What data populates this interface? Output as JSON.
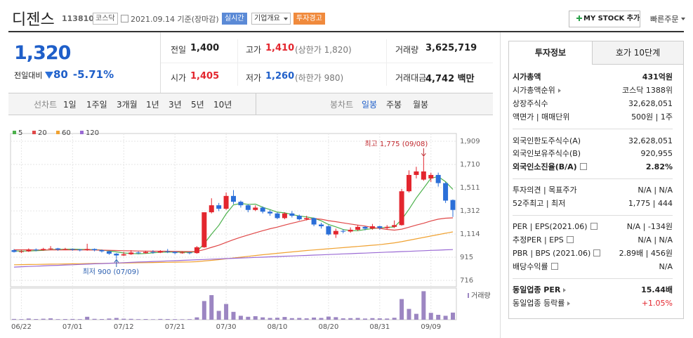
{
  "header": {
    "name": "디젠스",
    "code": "113810",
    "market": "코스닥",
    "date": "2021.09.14 기준(장마감)",
    "realtime": "실시간",
    "overview": "기업개요",
    "warning": "투자경고",
    "mystock": "MY STOCK 추가",
    "quick": "빠른주문"
  },
  "price": {
    "current": "1,320",
    "change_label": "전일대비",
    "change": "80",
    "change_pct": "-5.71%"
  },
  "quote": {
    "rows": [
      [
        {
          "label": "전일",
          "value": "1,400"
        },
        {
          "label": "고가",
          "value": "1,410",
          "note": "(상한가 1,820)"
        },
        {
          "label": "거래량",
          "value": "3,625,719"
        }
      ],
      [
        {
          "label": "시가",
          "value": "1,405"
        },
        {
          "label": "저가",
          "value": "1,260",
          "note": "(하한가 980)"
        },
        {
          "label": "거래대금",
          "value": "4,742 백만"
        }
      ]
    ]
  },
  "tabs": {
    "line_title": "선차트",
    "line": [
      "1일",
      "1주일",
      "3개월",
      "1년",
      "3년",
      "5년",
      "10년"
    ],
    "candle_title": "봉차트",
    "candle": [
      "일봉",
      "주봉",
      "월봉"
    ]
  },
  "info": {
    "tabs": [
      "투자정보",
      "호가 10단계"
    ],
    "groups": [
      [
        {
          "label": "시가총액",
          "value": "431억원"
        },
        {
          "label": "시가총액순위",
          "value": "코스닥 1388위"
        },
        {
          "label": "상장주식수",
          "value": "32,628,051"
        },
        {
          "label": "액면가 | 매매단위",
          "value": "500원 | 1주"
        }
      ],
      [
        {
          "label": "외국인한도주식수(A)",
          "value": "32,628,051"
        },
        {
          "label": "외국인보유주식수(B)",
          "value": "920,955"
        },
        {
          "label": "외국인소진율(B/A)",
          "value": "2.82%"
        }
      ],
      [
        {
          "label": "투자의견 | 목표주가",
          "value": "N/A | N/A"
        },
        {
          "label": "52주최고 | 최저",
          "value": "1,775 | 444"
        }
      ],
      [
        {
          "label": "PER | EPS(2021.06)",
          "value": "N/A | -134원"
        },
        {
          "label": "추정PER | EPS",
          "value": "N/A | N/A"
        },
        {
          "label": "PBR | BPS (2021.06)",
          "value": "2.89배 | 456원"
        },
        {
          "label": "배당수익률",
          "value": "N/A"
        }
      ],
      [
        {
          "label": "동일업종 PER",
          "value": "15.44배"
        },
        {
          "label": "동일업종 등락률",
          "value": "+1.05%"
        }
      ]
    ]
  },
  "chart_data": {
    "type": "candlestick",
    "categories": [
      null,
      "06/22",
      null,
      null,
      null,
      null,
      null,
      null,
      "07/01",
      null,
      null,
      null,
      null,
      null,
      null,
      "07/12",
      null,
      null,
      null,
      null,
      null,
      null,
      "07/21",
      null,
      null,
      null,
      null,
      null,
      null,
      "07/30",
      null,
      null,
      null,
      null,
      null,
      null,
      "08/10",
      null,
      null,
      null,
      null,
      null,
      null,
      "08/20",
      null,
      null,
      null,
      null,
      null,
      null,
      "08/31",
      null,
      null,
      null,
      null,
      null,
      null,
      "09/09",
      null,
      null,
      null
    ],
    "open": [
      975,
      960,
      965,
      980,
      975,
      985,
      990,
      980,
      985,
      980,
      975,
      985,
      975,
      965,
      945,
      930,
      940,
      955,
      950,
      960,
      955,
      965,
      960,
      950,
      955,
      950,
      1000,
      1300,
      1360,
      1330,
      1440,
      1390,
      1360,
      1320,
      1340,
      1305,
      1290,
      1250,
      1290,
      1270,
      1240,
      1250,
      1195,
      1180,
      1110,
      1140,
      1135,
      1150,
      1175,
      1160,
      1180,
      1165,
      1175,
      1190,
      1480,
      1620,
      1580,
      1590,
      1620,
      1550,
      1405
    ],
    "high": [
      985,
      975,
      990,
      990,
      995,
      1010,
      995,
      995,
      990,
      985,
      1030,
      990,
      980,
      970,
      950,
      960,
      975,
      965,
      970,
      975,
      975,
      985,
      965,
      965,
      960,
      1010,
      1300,
      1420,
      1380,
      1470,
      1490,
      1400,
      1370,
      1360,
      1350,
      1320,
      1300,
      1300,
      1310,
      1280,
      1270,
      1255,
      1210,
      1190,
      1160,
      1155,
      1170,
      1190,
      1180,
      1200,
      1185,
      1190,
      1230,
      1500,
      1660,
      1690,
      1775,
      1640,
      1640,
      1560,
      1410
    ],
    "low": [
      955,
      950,
      960,
      965,
      970,
      975,
      970,
      975,
      970,
      965,
      970,
      965,
      955,
      935,
      900,
      925,
      935,
      940,
      945,
      945,
      950,
      950,
      940,
      945,
      940,
      945,
      995,
      1290,
      1310,
      1320,
      1370,
      1340,
      1300,
      1310,
      1290,
      1270,
      1240,
      1240,
      1255,
      1230,
      1230,
      1180,
      1160,
      1100,
      1080,
      1120,
      1125,
      1140,
      1145,
      1150,
      1150,
      1155,
      1165,
      1185,
      1470,
      1590,
      1570,
      1560,
      1520,
      1380,
      1260
    ],
    "close": [
      960,
      965,
      980,
      975,
      985,
      990,
      980,
      985,
      980,
      975,
      985,
      975,
      965,
      945,
      930,
      940,
      955,
      950,
      960,
      955,
      965,
      960,
      950,
      955,
      950,
      1000,
      1300,
      1360,
      1330,
      1440,
      1390,
      1360,
      1320,
      1340,
      1305,
      1290,
      1250,
      1290,
      1270,
      1240,
      1250,
      1195,
      1180,
      1110,
      1140,
      1135,
      1150,
      1175,
      1160,
      1180,
      1165,
      1175,
      1190,
      1480,
      1620,
      1650,
      1650,
      1620,
      1550,
      1400,
      1320
    ],
    "up_color": "#e3262e",
    "down_color": "#2b6fd8",
    "series": [
      {
        "name": "5",
        "color": "#4cb14c",
        "values": [
          968,
          967,
          968,
          970,
          973,
          979,
          982,
          983,
          984,
          982,
          981,
          980,
          976,
          969,
          960,
          951,
          947,
          944,
          947,
          952,
          957,
          958,
          958,
          957,
          956,
          963,
          1031,
          1113,
          1188,
          1286,
          1364,
          1376,
          1368,
          1370,
          1343,
          1323,
          1301,
          1295,
          1281,
          1268,
          1260,
          1249,
          1227,
          1195,
          1175,
          1152,
          1143,
          1142,
          1152,
          1160,
          1166,
          1171,
          1174,
          1238,
          1326,
          1423,
          1506,
          1592,
          1606,
          1562,
          1496
        ]
      },
      {
        "name": "20",
        "color": "#e04848",
        "values": [
          978,
          978,
          978,
          977,
          977,
          977,
          977,
          977,
          977,
          977,
          977,
          976,
          975,
          974,
          972,
          970,
          969,
          968,
          967,
          966,
          966,
          966,
          965,
          964,
          963,
          964,
          980,
          999,
          1018,
          1042,
          1065,
          1086,
          1105,
          1124,
          1142,
          1159,
          1173,
          1190,
          1206,
          1221,
          1236,
          1246,
          1240,
          1228,
          1219,
          1209,
          1199,
          1190,
          1182,
          1169,
          1162,
          1153,
          1147,
          1155,
          1172,
          1190,
          1206,
          1226,
          1241,
          1249,
          1252
        ]
      },
      {
        "name": "60",
        "color": "#f0a232",
        "values": [
          850,
          851,
          852,
          853,
          854,
          855,
          856,
          857,
          858,
          859,
          860,
          861,
          862,
          863,
          864,
          865,
          866,
          867,
          868,
          869,
          870,
          871,
          872,
          873,
          874,
          876,
          882,
          888,
          894,
          901,
          908,
          915,
          922,
          929,
          936,
          942,
          948,
          954,
          960,
          966,
          972,
          977,
          982,
          987,
          992,
          997,
          1002,
          1007,
          1012,
          1017,
          1022,
          1030,
          1038,
          1048,
          1060,
          1072,
          1084,
          1096,
          1108,
          1120,
          1132
        ]
      },
      {
        "name": "120",
        "color": "#9a6ad4",
        "values": [
          830,
          833,
          835,
          838,
          840,
          843,
          845,
          848,
          850,
          853,
          855,
          858,
          860,
          863,
          865,
          868,
          870,
          873,
          875,
          878,
          880,
          883,
          885,
          888,
          890,
          893,
          895,
          898,
          900,
          903,
          905,
          908,
          910,
          913,
          915,
          918,
          920,
          923,
          925,
          928,
          930,
          933,
          935,
          938,
          940,
          943,
          945,
          948,
          950,
          953,
          955,
          958,
          960,
          963,
          965,
          968,
          970,
          973,
          975,
          978,
          980
        ]
      }
    ],
    "volume_name": "거래량",
    "volume_color": "#9c86c2",
    "volume": [
      400000,
      300000,
      600000,
      350000,
      500000,
      700000,
      300000,
      350000,
      400000,
      300000,
      1500000,
      450000,
      350000,
      600000,
      900000,
      500000,
      450000,
      300000,
      350000,
      250000,
      400000,
      350000,
      300000,
      250000,
      300000,
      1200000,
      9500000,
      12500000,
      4500000,
      8000000,
      4000000,
      2000000,
      1500000,
      1800000,
      1200000,
      900000,
      1000000,
      1400000,
      800000,
      900000,
      700000,
      1100000,
      900000,
      1600000,
      1300000,
      700000,
      800000,
      900000,
      600000,
      800000,
      700000,
      600000,
      1000000,
      10500000,
      5500000,
      3000000,
      14500000,
      3500000,
      2500000,
      2000000,
      3625719
    ],
    "volume_ylim": [
      0,
      15000000
    ],
    "ylim": [
      716,
      1909
    ],
    "yticks": [
      716,
      915,
      {
        "value": 1114,
        "label": "1,114"
      },
      {
        "value": 1312,
        "label": "1,312"
      },
      {
        "value": 1511,
        "label": "1,511"
      },
      {
        "value": 1710,
        "label": "1,710"
      },
      {
        "value": 1909,
        "label": "1,909"
      }
    ],
    "grid": true,
    "annotations": {
      "high": "최고 1,775 (09/08)",
      "low": "최저 900 (07/09)"
    }
  }
}
